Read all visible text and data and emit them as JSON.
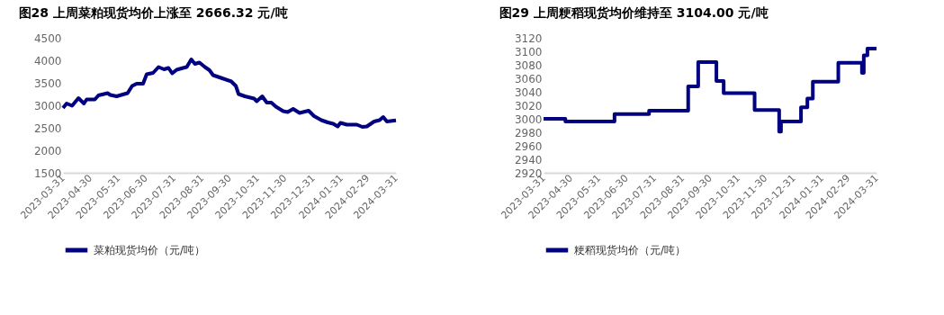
{
  "chart_data": [
    {
      "type": "line",
      "title": "图28 上周菜粕现货均价上涨至 2666.32 元/吨",
      "x": [
        "2023-03-31",
        "2023-04-04",
        "2023-04-10",
        "2023-04-17",
        "2023-04-23",
        "2023-04-26",
        "2023-05-05",
        "2023-05-09",
        "2023-05-19",
        "2023-05-22",
        "2023-05-29",
        "2023-06-03",
        "2023-06-10",
        "2023-06-15",
        "2023-06-20",
        "2023-06-27",
        "2023-07-01",
        "2023-07-08",
        "2023-07-14",
        "2023-07-20",
        "2023-07-25",
        "2023-07-29",
        "2023-08-03",
        "2023-08-10",
        "2023-08-14",
        "2023-08-19",
        "2023-08-23",
        "2023-08-28",
        "2023-09-03",
        "2023-09-08",
        "2023-09-12",
        "2023-09-22",
        "2023-10-02",
        "2023-10-07",
        "2023-10-10",
        "2023-10-17",
        "2023-10-27",
        "2023-10-30",
        "2023-11-05",
        "2023-11-10",
        "2023-11-15",
        "2023-11-20",
        "2023-11-28",
        "2023-12-03",
        "2023-12-09",
        "2023-12-16",
        "2023-12-26",
        "2024-01-01",
        "2024-01-09",
        "2024-01-16",
        "2024-01-22",
        "2024-01-27",
        "2024-01-30",
        "2024-02-06",
        "2024-02-17",
        "2024-02-23",
        "2024-02-28",
        "2024-03-07",
        "2024-03-13",
        "2024-03-17",
        "2024-03-21",
        "2024-03-31"
      ],
      "series": [
        {
          "name": "菜粕现货均价（元/吨）",
          "color": "#000080",
          "values": [
            2940,
            3040,
            2990,
            3160,
            3040,
            3130,
            3130,
            3220,
            3270,
            3230,
            3200,
            3230,
            3270,
            3430,
            3480,
            3480,
            3690,
            3720,
            3850,
            3800,
            3830,
            3710,
            3790,
            3830,
            3850,
            4020,
            3920,
            3950,
            3850,
            3780,
            3670,
            3600,
            3530,
            3430,
            3250,
            3200,
            3150,
            3090,
            3200,
            3060,
            3060,
            2970,
            2870,
            2850,
            2920,
            2830,
            2880,
            2760,
            2670,
            2620,
            2590,
            2530,
            2610,
            2570,
            2570,
            2520,
            2530,
            2640,
            2670,
            2740,
            2640,
            2666
          ]
        }
      ],
      "xlim": [
        "2023-03-31",
        "2024-03-31"
      ],
      "xticks": [
        "2023-03-31",
        "2023-04-30",
        "2023-05-31",
        "2023-06-30",
        "2023-07-31",
        "2023-08-31",
        "2023-09-30",
        "2023-10-31",
        "2023-11-30",
        "2023-12-31",
        "2024-01-31",
        "2024-02-29",
        "2024-03-31"
      ],
      "ylim": [
        1500,
        4500
      ],
      "yticks": [
        1500,
        2000,
        2500,
        3000,
        3500,
        4000,
        4500
      ],
      "grid": false,
      "legend": "bottom",
      "marker": "none",
      "line_style": "solid"
    },
    {
      "type": "step",
      "title": "图29 上周粳稻现货均价维持至 3104.00 元/吨",
      "x": [
        "2023-03-31",
        "2023-04-24",
        "2023-06-17",
        "2023-07-25",
        "2023-09-06",
        "2023-09-17",
        "2023-10-07",
        "2023-10-15",
        "2023-11-18",
        "2023-12-15",
        "2023-12-17",
        "2024-01-08",
        "2024-01-15",
        "2024-01-21",
        "2024-02-18",
        "2024-03-15",
        "2024-03-17",
        "2024-03-21",
        "2024-03-31"
      ],
      "series": [
        {
          "name": "粳稻现货均价（元/吨）",
          "color": "#000080",
          "values": [
            3000,
            2996,
            3007,
            3012,
            3048,
            3084,
            3056,
            3038,
            3013,
            2981,
            2996,
            3017,
            3030,
            3055,
            3083,
            3068,
            3094,
            3104,
            3104
          ]
        }
      ],
      "xlim": [
        "2023-03-31",
        "2024-03-31"
      ],
      "xticks": [
        "2023-03-31",
        "2023-04-30",
        "2023-05-31",
        "2023-06-30",
        "2023-07-31",
        "2023-08-31",
        "2023-09-30",
        "2023-10-31",
        "2023-11-30",
        "2023-12-31",
        "2024-01-31",
        "2024-02-29",
        "2024-03-31"
      ],
      "ylim": [
        2920,
        3120
      ],
      "yticks": [
        2920,
        2940,
        2960,
        2980,
        3000,
        3020,
        3040,
        3060,
        3080,
        3100,
        3120
      ],
      "grid": false,
      "legend": "bottom",
      "marker": "none",
      "line_style": "solid"
    }
  ]
}
